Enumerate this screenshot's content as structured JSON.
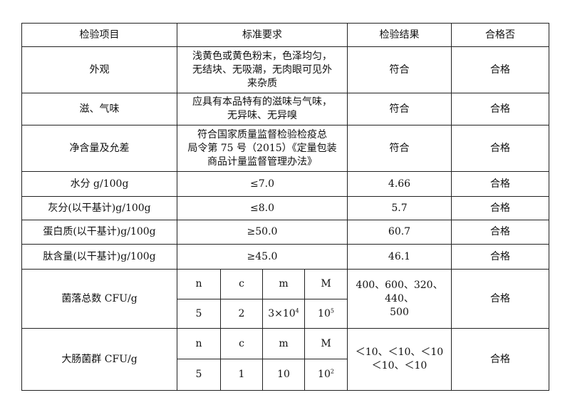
{
  "headers": [
    "检验项目",
    "标准要求",
    "检验结果",
    "合格否"
  ],
  "rows": [
    {
      "item": "外观",
      "standard": [
        "浅黄色或黄色粉末，色泽均匀，",
        "无结块、无吸潮，无肉眼可见外",
        "来杂质"
      ],
      "result": "符合",
      "pass": "合格"
    },
    {
      "item": "滋、气味",
      "standard": [
        "应具有本品特有的滋味与气味，",
        "无异味、无异嗅"
      ],
      "result": "符合",
      "pass": "合格"
    },
    {
      "item": "净含量及允差",
      "standard": [
        "符合国家质量监督检验检疫总",
        "局令第 75 号（2015）《定量包装",
        "商品计量监督管理办法》"
      ],
      "result": "符合",
      "pass": "合格"
    },
    {
      "item": "水分 g/100g",
      "standard": [
        "≤7.0"
      ],
      "result": "4.66",
      "pass": "合格"
    },
    {
      "item": "灰分(以干基计)g/100g",
      "standard": [
        "≤8.0"
      ],
      "result": "5.7",
      "pass": "合格"
    },
    {
      "item": "蛋白质(以干基计)g/100g",
      "standard": [
        "≥50.0"
      ],
      "result": "60.7",
      "pass": "合格"
    },
    {
      "item": "肽含量(以干基计)g/100g",
      "standard": [
        "≥45.0"
      ],
      "result": "46.1",
      "pass": "合格"
    }
  ],
  "micro": [
    {
      "item": "菌落总数 CFU/g",
      "labels": [
        "n",
        "c",
        "m",
        "M"
      ],
      "n": "5",
      "c": "2",
      "m_base": "3×10",
      "m_exp": "4",
      "M_base": "10",
      "M_exp": "5",
      "result": [
        "400、600、320、440、",
        "500"
      ],
      "pass": "合格"
    },
    {
      "item": "大肠菌群 CFU/g",
      "labels": [
        "n",
        "c",
        "m",
        "M"
      ],
      "n": "5",
      "c": "1",
      "m_base": "10",
      "m_exp": "",
      "M_base": "10",
      "M_exp": "2",
      "result": [
        "＜10、＜10、＜10",
        "＜10、＜10"
      ],
      "pass": "合格"
    }
  ]
}
